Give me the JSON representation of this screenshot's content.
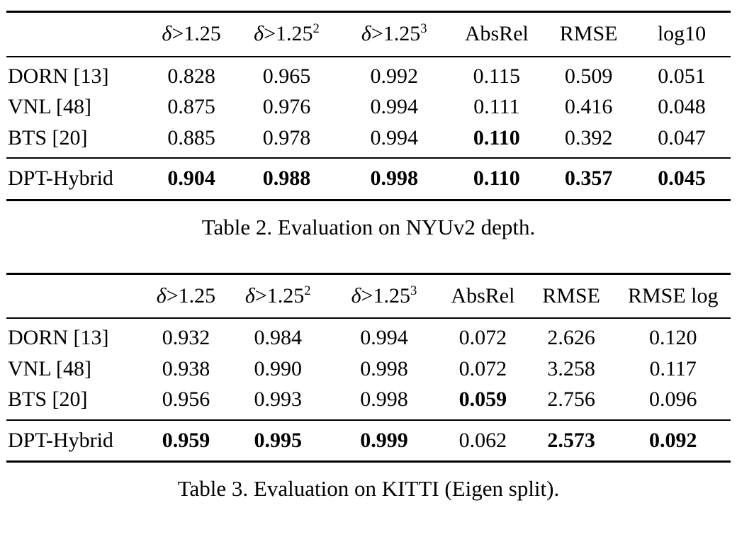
{
  "page": {
    "background": "#ffffff",
    "text_color": "#000000"
  },
  "tables": [
    {
      "id": "nyuv2",
      "caption": "Table 2. Evaluation on NYUv2 depth.",
      "headers": [
        {
          "italic": "",
          "text": "",
          "sup": ""
        },
        {
          "italic": "δ",
          "text": ">1.25",
          "sup": ""
        },
        {
          "italic": "δ",
          "text": ">1.25",
          "sup": "2"
        },
        {
          "italic": "δ",
          "text": ">1.25",
          "sup": "3"
        },
        {
          "italic": "",
          "text": "AbsRel",
          "sup": ""
        },
        {
          "italic": "",
          "text": "RMSE",
          "sup": ""
        },
        {
          "italic": "",
          "text": "log10",
          "sup": ""
        }
      ],
      "rows": [
        {
          "label": "DORN [13]",
          "separated": false,
          "cells": [
            {
              "v": "0.828",
              "bold": false
            },
            {
              "v": "0.965",
              "bold": false
            },
            {
              "v": "0.992",
              "bold": false
            },
            {
              "v": "0.115",
              "bold": false
            },
            {
              "v": "0.509",
              "bold": false
            },
            {
              "v": "0.051",
              "bold": false
            }
          ]
        },
        {
          "label": "VNL [48]",
          "separated": false,
          "cells": [
            {
              "v": "0.875",
              "bold": false
            },
            {
              "v": "0.976",
              "bold": false
            },
            {
              "v": "0.994",
              "bold": false
            },
            {
              "v": "0.111",
              "bold": false
            },
            {
              "v": "0.416",
              "bold": false
            },
            {
              "v": "0.048",
              "bold": false
            }
          ]
        },
        {
          "label": "BTS [20]",
          "separated": false,
          "cells": [
            {
              "v": "0.885",
              "bold": false
            },
            {
              "v": "0.978",
              "bold": false
            },
            {
              "v": "0.994",
              "bold": false
            },
            {
              "v": "0.110",
              "bold": true
            },
            {
              "v": "0.392",
              "bold": false
            },
            {
              "v": "0.047",
              "bold": false
            }
          ]
        },
        {
          "label": "DPT-Hybrid",
          "separated": true,
          "cells": [
            {
              "v": "0.904",
              "bold": true
            },
            {
              "v": "0.988",
              "bold": true
            },
            {
              "v": "0.998",
              "bold": true
            },
            {
              "v": "0.110",
              "bold": true
            },
            {
              "v": "0.357",
              "bold": true
            },
            {
              "v": "0.045",
              "bold": true
            }
          ]
        }
      ]
    },
    {
      "id": "kitti",
      "caption": "Table 3. Evaluation on KITTI (Eigen split).",
      "headers": [
        {
          "italic": "",
          "text": "",
          "sup": ""
        },
        {
          "italic": "δ",
          "text": ">1.25",
          "sup": ""
        },
        {
          "italic": "δ",
          "text": ">1.25",
          "sup": "2"
        },
        {
          "italic": "δ",
          "text": ">1.25",
          "sup": "3"
        },
        {
          "italic": "",
          "text": "AbsRel",
          "sup": ""
        },
        {
          "italic": "",
          "text": "RMSE",
          "sup": ""
        },
        {
          "italic": "",
          "text": "RMSE log",
          "sup": ""
        }
      ],
      "rows": [
        {
          "label": "DORN [13]",
          "separated": false,
          "cells": [
            {
              "v": "0.932",
              "bold": false
            },
            {
              "v": "0.984",
              "bold": false
            },
            {
              "v": "0.994",
              "bold": false
            },
            {
              "v": "0.072",
              "bold": false
            },
            {
              "v": "2.626",
              "bold": false
            },
            {
              "v": "0.120",
              "bold": false
            }
          ]
        },
        {
          "label": "VNL [48]",
          "separated": false,
          "cells": [
            {
              "v": "0.938",
              "bold": false
            },
            {
              "v": "0.990",
              "bold": false
            },
            {
              "v": "0.998",
              "bold": false
            },
            {
              "v": "0.072",
              "bold": false
            },
            {
              "v": "3.258",
              "bold": false
            },
            {
              "v": "0.117",
              "bold": false
            }
          ]
        },
        {
          "label": "BTS [20]",
          "separated": false,
          "cells": [
            {
              "v": "0.956",
              "bold": false
            },
            {
              "v": "0.993",
              "bold": false
            },
            {
              "v": "0.998",
              "bold": false
            },
            {
              "v": "0.059",
              "bold": true
            },
            {
              "v": "2.756",
              "bold": false
            },
            {
              "v": "0.096",
              "bold": false
            }
          ]
        },
        {
          "label": "DPT-Hybrid",
          "separated": true,
          "cells": [
            {
              "v": "0.959",
              "bold": true
            },
            {
              "v": "0.995",
              "bold": true
            },
            {
              "v": "0.999",
              "bold": true
            },
            {
              "v": "0.062",
              "bold": false
            },
            {
              "v": "2.573",
              "bold": true
            },
            {
              "v": "0.092",
              "bold": true
            }
          ]
        }
      ]
    }
  ]
}
